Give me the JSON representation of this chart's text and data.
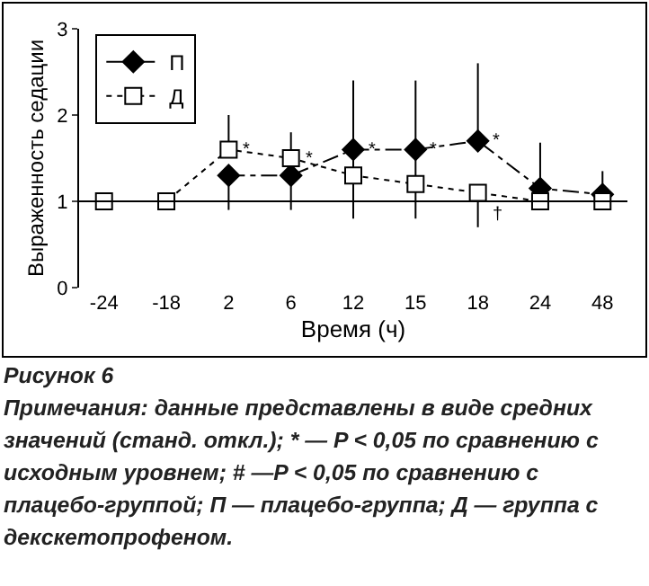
{
  "chart_data": {
    "type": "line",
    "xlabel": "Время (ч)",
    "ylabel": "Выраженность седации",
    "categories": [
      "-24",
      "-18",
      "2",
      "6",
      "12",
      "15",
      "18",
      "24",
      "48"
    ],
    "series": [
      {
        "name": "П",
        "color": "#000000",
        "marker": "diamond",
        "line_style": "dashed",
        "values": [
          null,
          null,
          1.3,
          1.3,
          1.6,
          1.6,
          1.7,
          1.15,
          1.08
        ],
        "errors": [
          null,
          null,
          [
            0.9,
            1.3
          ],
          [
            0.9,
            1.3
          ],
          [
            0.8,
            2.4
          ],
          [
            0.8,
            2.4
          ],
          [
            1.7,
            2.6
          ],
          [
            1.15,
            1.68
          ],
          [
            1.08,
            1.35
          ]
        ]
      },
      {
        "name": "Д",
        "color": "#000000",
        "marker": "square",
        "line_style": "dotted",
        "values": [
          1,
          1,
          1.6,
          1.5,
          1.3,
          1.2,
          1.1,
          1.0,
          1.0
        ],
        "errors": [
          null,
          null,
          [
            1.6,
            2.0
          ],
          [
            1.5,
            1.8
          ],
          null,
          null,
          [
            0.7,
            1.1
          ],
          null,
          null
        ]
      }
    ],
    "ref_lines": [
      {
        "axis": "y",
        "value": 1
      }
    ],
    "ylim": [
      0,
      3
    ],
    "yticks": [
      0,
      1,
      2,
      3
    ],
    "grid": false,
    "legend": "top left",
    "annotations": [
      {
        "text": "*",
        "x": "2",
        "y": 1.6
      },
      {
        "text": "*",
        "x": "6",
        "y": 1.5
      },
      {
        "text": "*",
        "x": "12",
        "y": 1.6
      },
      {
        "text": "*",
        "x": "15",
        "y": 1.6
      },
      {
        "text": "*",
        "x": "18",
        "y": 1.7
      },
      {
        "text": "†",
        "x": "18",
        "y": 0.85
      },
      "Рисунок 6",
      "Примечания: данные представлены в виде средних значений (станд. откл.); * — P < 0,05 по сравнению с исходным уровнем; # —P < 0,05 по сравнению с плацебо-группой; П — плацебо-группа; Д — группа с декскетопрофеном."
    ]
  }
}
